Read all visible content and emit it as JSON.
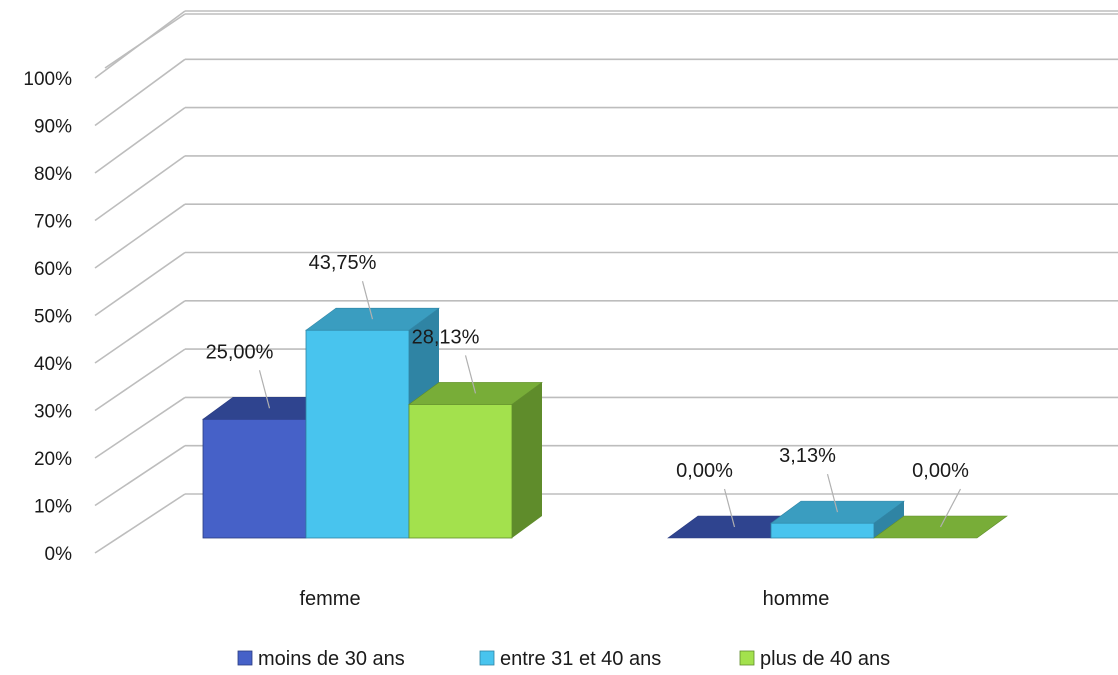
{
  "chart_data": {
    "type": "bar",
    "three_d": true,
    "categories": [
      "femme",
      "homme"
    ],
    "series": [
      {
        "name": "moins de 30 ans",
        "values": [
          25.0,
          0.0
        ],
        "labels": [
          "25,00%",
          "0,00%"
        ],
        "color": "#4661c8",
        "top_color": "#2f448f",
        "side_color": "#2a3b80"
      },
      {
        "name": "entre 31 et 40 ans",
        "values": [
          43.75,
          3.13
        ],
        "labels": [
          "43,75%",
          "3,13%"
        ],
        "color": "#48c4ee",
        "top_color": "#3a9dc0",
        "side_color": "#2f84a4"
      },
      {
        "name": "plus de 40 ans",
        "values": [
          28.13,
          0.0
        ],
        "labels": [
          "28,13%",
          "0,00%"
        ],
        "color": "#a3e14d",
        "top_color": "#78ad38",
        "side_color": "#5f8c2b"
      }
    ],
    "y_ticks": [
      "0%",
      "10%",
      "20%",
      "30%",
      "40%",
      "50%",
      "60%",
      "70%",
      "80%",
      "90%",
      "100%"
    ],
    "ylim": [
      0,
      100
    ],
    "grid": true,
    "legend_position": "bottom"
  }
}
